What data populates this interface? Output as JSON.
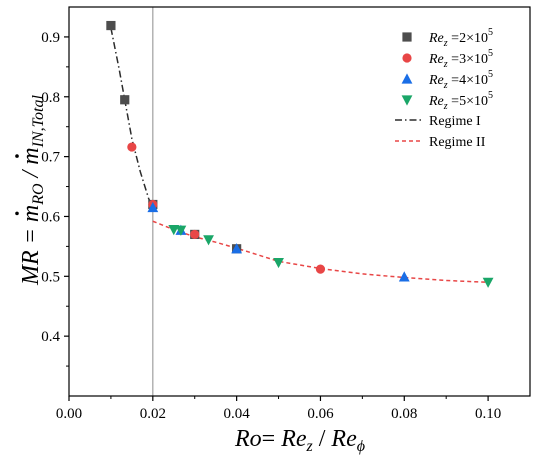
{
  "chart_data": {
    "type": "scatter",
    "x_axis": {
      "range": [
        0.0,
        0.11
      ],
      "ticks": [
        "0.00",
        "0.02",
        "0.04",
        "0.06",
        "0.08",
        "0.10"
      ],
      "title": {
        "pre": "Ro",
        "mid": "= ",
        "re1": "Re",
        "sub1": "z",
        "slash": " / ",
        "re2": "Re",
        "sub2": "ϕ"
      }
    },
    "y_axis": {
      "range": [
        0.3,
        0.95
      ],
      "ticks": [
        "0.4",
        "0.5",
        "0.6",
        "0.7",
        "0.8",
        "0.9"
      ],
      "title": {
        "mr": "MR",
        "eq": " = ",
        "m1": "m",
        "sub1": "RO",
        "slash": " / ",
        "m2": "m",
        "sub2": "IN,Total"
      }
    },
    "vertical_reference_line": {
      "x": 0.02,
      "color": "#a0a0a0"
    },
    "series": [
      {
        "name": "Re_z = 2×10^5",
        "label_parts": {
          "re": "Re",
          "sub": "z",
          "eq": " =2×10",
          "sup": "5"
        },
        "marker": "square",
        "color": "#4d4d4d",
        "x": [
          0.01,
          0.0133,
          0.02,
          0.03,
          0.04
        ],
        "y": [
          0.919,
          0.795,
          0.62,
          0.57,
          0.546
        ]
      },
      {
        "name": "Re_z = 3×10^5",
        "label_parts": {
          "re": "Re",
          "sub": "z",
          "eq": " =3×10",
          "sup": "5"
        },
        "marker": "circle",
        "color": "#e84646",
        "x": [
          0.015,
          0.02,
          0.03,
          0.06
        ],
        "y": [
          0.716,
          0.62,
          0.57,
          0.512
        ]
      },
      {
        "name": "Re_z = 4×10^5",
        "label_parts": {
          "re": "Re",
          "sub": "z",
          "eq": " =4×10",
          "sup": "5"
        },
        "marker": "triangle-up",
        "color": "#1a6ee6",
        "x": [
          0.02,
          0.0267,
          0.04,
          0.08
        ],
        "y": [
          0.615,
          0.577,
          0.546,
          0.499
        ]
      },
      {
        "name": "Re_z = 5×10^5",
        "label_parts": {
          "re": "Re",
          "sub": "z",
          "eq": " =5×10",
          "sup": "5"
        },
        "marker": "triangle-down",
        "color": "#1aa668",
        "x": [
          0.025,
          0.0267,
          0.0333,
          0.05,
          0.1
        ],
        "y": [
          0.578,
          0.577,
          0.561,
          0.523,
          0.49
        ]
      }
    ],
    "fit_lines": [
      {
        "name": "Regime I",
        "style": "dash-dot",
        "color": "#2b2b2b",
        "x": [
          0.01,
          0.012,
          0.0133,
          0.015,
          0.017,
          0.019,
          0.02
        ],
        "y": [
          0.915,
          0.845,
          0.795,
          0.73,
          0.675,
          0.63,
          0.615
        ]
      },
      {
        "name": "Regime II",
        "style": "dashed",
        "color": "#e84646",
        "x": [
          0.02,
          0.025,
          0.03,
          0.035,
          0.04,
          0.05,
          0.06,
          0.07,
          0.08,
          0.09,
          0.1
        ],
        "y": [
          0.592,
          0.578,
          0.566,
          0.557,
          0.547,
          0.525,
          0.513,
          0.504,
          0.498,
          0.493,
          0.49
        ]
      }
    ],
    "legend_position": "top-right"
  }
}
